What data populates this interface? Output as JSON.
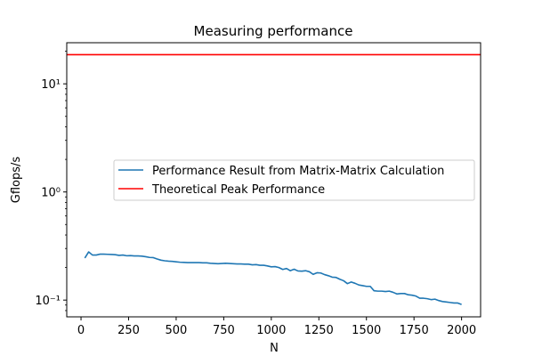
{
  "chart_data": {
    "type": "line",
    "title": "Measuring performance",
    "xlabel": "N",
    "ylabel": "Gflops/s",
    "yscale": "log",
    "xlim": [
      -75,
      2100
    ],
    "ylim": [
      0.07,
      24
    ],
    "xticks": [
      0,
      250,
      500,
      750,
      1000,
      1250,
      1500,
      1750,
      2000
    ],
    "xtick_labels": [
      "0",
      "250",
      "500",
      "750",
      "1000",
      "1250",
      "1500",
      "1750",
      "2000"
    ],
    "yticks": [
      0.1,
      1,
      10
    ],
    "ytick_labels": [
      "10⁻¹",
      "10⁰",
      "10¹"
    ],
    "legend_position": "center-right",
    "grid": false,
    "series": [
      {
        "name": "Performance Result from Matrix-Matrix Calculation",
        "color": "#1f77b4",
        "x": [
          20,
          40,
          60,
          80,
          100,
          120,
          140,
          160,
          180,
          200,
          220,
          240,
          260,
          280,
          300,
          320,
          340,
          360,
          380,
          400,
          420,
          440,
          460,
          480,
          500,
          520,
          540,
          560,
          580,
          600,
          620,
          640,
          660,
          680,
          700,
          720,
          740,
          760,
          780,
          800,
          820,
          840,
          860,
          880,
          900,
          920,
          940,
          960,
          980,
          1000,
          1020,
          1040,
          1060,
          1080,
          1100,
          1120,
          1140,
          1160,
          1180,
          1200,
          1220,
          1240,
          1260,
          1280,
          1300,
          1320,
          1340,
          1360,
          1380,
          1400,
          1420,
          1440,
          1460,
          1480,
          1500,
          1520,
          1540,
          1560,
          1580,
          1600,
          1620,
          1640,
          1660,
          1680,
          1700,
          1720,
          1740,
          1760,
          1780,
          1800,
          1820,
          1840,
          1860,
          1880,
          1900,
          1920,
          1940,
          1960,
          1980,
          2000
        ],
        "y": [
          0.245,
          0.279,
          0.261,
          0.261,
          0.266,
          0.266,
          0.265,
          0.264,
          0.263,
          0.259,
          0.261,
          0.257,
          0.258,
          0.256,
          0.256,
          0.255,
          0.252,
          0.248,
          0.247,
          0.24,
          0.234,
          0.231,
          0.229,
          0.228,
          0.226,
          0.224,
          0.223,
          0.222,
          0.222,
          0.222,
          0.222,
          0.221,
          0.221,
          0.219,
          0.218,
          0.217,
          0.218,
          0.219,
          0.218,
          0.217,
          0.216,
          0.216,
          0.215,
          0.215,
          0.212,
          0.213,
          0.21,
          0.21,
          0.207,
          0.203,
          0.204,
          0.2,
          0.192,
          0.196,
          0.187,
          0.193,
          0.186,
          0.185,
          0.187,
          0.183,
          0.173,
          0.179,
          0.178,
          0.172,
          0.168,
          0.163,
          0.162,
          0.156,
          0.151,
          0.142,
          0.147,
          0.143,
          0.138,
          0.136,
          0.134,
          0.134,
          0.122,
          0.121,
          0.121,
          0.12,
          0.121,
          0.118,
          0.114,
          0.115,
          0.115,
          0.112,
          0.111,
          0.109,
          0.104,
          0.104,
          0.103,
          0.101,
          0.102,
          0.099,
          0.097,
          0.096,
          0.095,
          0.094,
          0.094,
          0.091
        ]
      },
      {
        "name": "Theoretical Peak Performance",
        "color": "#ff0000",
        "x": [
          -75,
          2100
        ],
        "y": [
          18.6,
          18.6
        ]
      }
    ]
  }
}
